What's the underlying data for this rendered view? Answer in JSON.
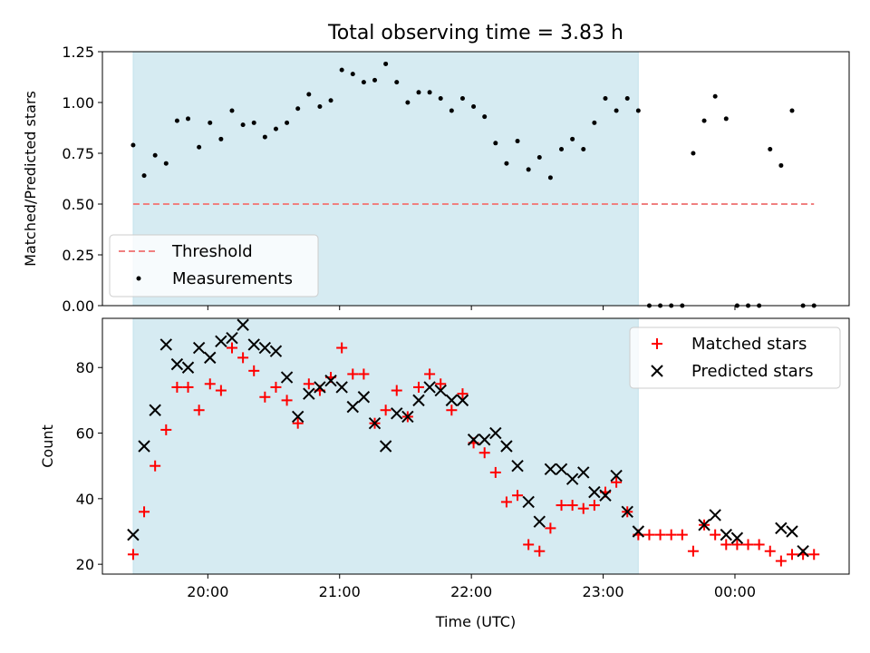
{
  "chart_data": [
    {
      "type": "scatter",
      "title": "Total observing time = 3.83 h",
      "ylabel": "Matched/Predicted stars",
      "xlabel": "",
      "ylim": [
        0,
        1.25
      ],
      "xlim": [
        "19:12",
        "00:52"
      ],
      "yticks": [
        "0.00",
        "0.25",
        "0.50",
        "0.75",
        "1.00",
        "1.25"
      ],
      "grid": false,
      "legend_position": "lower-left",
      "observing_window": [
        "19:26",
        "23:16"
      ],
      "threshold": {
        "name": "Threshold",
        "value": 0.5,
        "x_range": [
          "19:26",
          "00:36"
        ],
        "color": "#f08080"
      },
      "series": [
        {
          "name": "Measurements",
          "color": "#000000",
          "x": [
            "19:26",
            "19:31",
            "19:36",
            "19:41",
            "19:46",
            "19:51",
            "19:56",
            "20:01",
            "20:06",
            "20:11",
            "20:16",
            "20:21",
            "20:26",
            "20:31",
            "20:36",
            "20:41",
            "20:46",
            "20:51",
            "20:56",
            "21:01",
            "21:06",
            "21:11",
            "21:16",
            "21:21",
            "21:26",
            "21:31",
            "21:36",
            "21:41",
            "21:46",
            "21:51",
            "21:56",
            "22:01",
            "22:06",
            "22:11",
            "22:16",
            "22:21",
            "22:26",
            "22:31",
            "22:36",
            "22:41",
            "22:46",
            "22:51",
            "22:56",
            "23:01",
            "23:06",
            "23:11",
            "23:16",
            "23:21",
            "23:26",
            "23:31",
            "23:36",
            "23:41",
            "23:46",
            "23:51",
            "23:56",
            "00:01",
            "00:06",
            "00:11",
            "00:16",
            "00:21",
            "00:26",
            "00:31",
            "00:36"
          ],
          "y": [
            0.79,
            0.64,
            0.74,
            0.7,
            0.91,
            0.92,
            0.78,
            0.9,
            0.82,
            0.96,
            0.89,
            0.9,
            0.83,
            0.87,
            0.9,
            0.97,
            1.04,
            0.98,
            1.01,
            1.16,
            1.14,
            1.1,
            1.11,
            1.19,
            1.1,
            1.0,
            1.05,
            1.05,
            1.02,
            0.96,
            1.02,
            0.98,
            0.93,
            0.8,
            0.7,
            0.81,
            0.67,
            0.73,
            0.63,
            0.77,
            0.82,
            0.77,
            0.9,
            1.02,
            0.96,
            1.02,
            0.96,
            0,
            0,
            0,
            0,
            0.75,
            0.91,
            1.03,
            0.92,
            0,
            0,
            0,
            0.77,
            0.69,
            0.96,
            0,
            0
          ]
        }
      ]
    },
    {
      "type": "scatter",
      "title": "",
      "ylabel": "Count",
      "xlabel": "Time (UTC)",
      "ylim": [
        17,
        95
      ],
      "xlim": [
        "19:12",
        "00:52"
      ],
      "yticks": [
        "20",
        "40",
        "60",
        "80"
      ],
      "xticks": [
        "20:00",
        "21:00",
        "22:00",
        "23:00",
        "00:00"
      ],
      "grid": false,
      "legend_position": "upper-right",
      "observing_window": [
        "19:26",
        "23:16"
      ],
      "series": [
        {
          "name": "Matched stars",
          "marker": "plus",
          "color": "#ff0000",
          "x": [
            "19:26",
            "19:31",
            "19:36",
            "19:41",
            "19:46",
            "19:51",
            "19:56",
            "20:01",
            "20:06",
            "20:11",
            "20:16",
            "20:21",
            "20:26",
            "20:31",
            "20:36",
            "20:41",
            "20:46",
            "20:51",
            "20:56",
            "21:01",
            "21:06",
            "21:11",
            "21:16",
            "21:21",
            "21:26",
            "21:31",
            "21:36",
            "21:41",
            "21:46",
            "21:51",
            "21:56",
            "22:01",
            "22:06",
            "22:11",
            "22:16",
            "22:21",
            "22:26",
            "22:31",
            "22:36",
            "22:41",
            "22:46",
            "22:51",
            "22:56",
            "23:01",
            "23:06",
            "23:11",
            "23:16",
            "23:21",
            "23:26",
            "23:31",
            "23:36",
            "23:41",
            "23:46",
            "23:51",
            "23:56",
            "00:01",
            "00:06",
            "00:11",
            "00:16",
            "00:21",
            "00:26",
            "00:31",
            "00:36"
          ],
          "y": [
            23,
            36,
            50,
            61,
            74,
            74,
            67,
            75,
            73,
            86,
            83,
            79,
            71,
            74,
            70,
            63,
            75,
            73,
            77,
            86,
            78,
            78,
            63,
            67,
            73,
            65,
            74,
            78,
            75,
            67,
            72,
            57,
            54,
            48,
            39,
            41,
            26,
            24,
            31,
            38,
            38,
            37,
            38,
            42,
            45,
            36,
            29,
            29,
            29,
            29,
            29,
            24,
            32,
            29,
            26,
            26,
            26,
            26,
            24,
            21,
            23,
            23,
            23
          ]
        },
        {
          "name": "Predicted stars",
          "marker": "x",
          "color": "#000000",
          "x": [
            "19:26",
            "19:31",
            "19:36",
            "19:41",
            "19:46",
            "19:51",
            "19:56",
            "20:01",
            "20:06",
            "20:11",
            "20:16",
            "20:21",
            "20:26",
            "20:31",
            "20:36",
            "20:41",
            "20:46",
            "20:51",
            "20:56",
            "21:01",
            "21:06",
            "21:11",
            "21:16",
            "21:21",
            "21:26",
            "21:31",
            "21:36",
            "21:41",
            "21:46",
            "21:51",
            "21:56",
            "22:01",
            "22:06",
            "22:11",
            "22:16",
            "22:21",
            "22:26",
            "22:31",
            "22:36",
            "22:41",
            "22:46",
            "22:51",
            "22:56",
            "23:01",
            "23:06",
            "23:11",
            "23:16",
            "23:46",
            "23:51",
            "23:56",
            "00:01",
            "00:21",
            "00:26",
            "00:31"
          ],
          "y": [
            29,
            56,
            67,
            87,
            81,
            80,
            86,
            83,
            88,
            89,
            93,
            87,
            86,
            85,
            77,
            65,
            72,
            74,
            76,
            74,
            68,
            71,
            63,
            56,
            66,
            65,
            70,
            74,
            73,
            70,
            70,
            58,
            58,
            60,
            56,
            50,
            39,
            33,
            49,
            49,
            46,
            48,
            42,
            41,
            47,
            36,
            30,
            32,
            35,
            29,
            28,
            31,
            30,
            24
          ]
        }
      ]
    }
  ]
}
